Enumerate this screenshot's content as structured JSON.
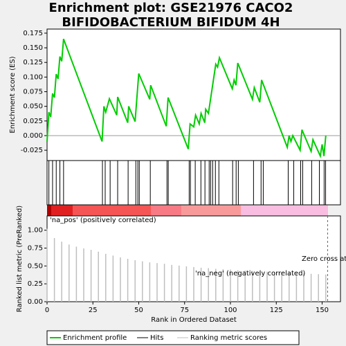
{
  "chart_data": [
    {
      "type": "line",
      "title": [
        "Enrichment plot: GSE21976 CACO2",
        "BIFIDOBACTERIUM BIFIDUM 4H"
      ],
      "ylabel": "Enrichment score (ES)",
      "xlim": [
        0,
        160
      ],
      "ylim": [
        -0.0426,
        0.182
      ],
      "yticks": [
        {
          "value": -0.025,
          "label": "-0.025"
        },
        {
          "value": 0,
          "label": "0.000"
        },
        {
          "value": 0.025,
          "label": "0.025"
        },
        {
          "value": 0.05,
          "label": "0.050"
        },
        {
          "value": 0.075,
          "label": "0.075"
        },
        {
          "value": 0.1,
          "label": "0.100"
        },
        {
          "value": 0.125,
          "label": "0.125"
        },
        {
          "value": 0.15,
          "label": "0.150"
        },
        {
          "value": 0.175,
          "label": "0.175"
        }
      ],
      "zero_line": true,
      "x": [
        0,
        1,
        2,
        3,
        4,
        5,
        6,
        7,
        8,
        9,
        30,
        31,
        32,
        34,
        38,
        38.5,
        44,
        44.5,
        48,
        50,
        56,
        56.5,
        65,
        66,
        77,
        78,
        80,
        81,
        83,
        84,
        86,
        86.5,
        88,
        90,
        92,
        93,
        94,
        101,
        102,
        103,
        104,
        112,
        113,
        116,
        117,
        131,
        132,
        133,
        134,
        138,
        139,
        144,
        145,
        149,
        150,
        151,
        152
      ],
      "series": [
        {
          "name": "Enrichment profile",
          "color": "#00cc00",
          "values": [
            -0.01,
            0.04,
            0.032,
            0.072,
            0.065,
            0.105,
            0.097,
            0.135,
            0.127,
            0.165,
            -0.01,
            0.05,
            0.04,
            0.063,
            0.035,
            0.066,
            0.022,
            0.05,
            0.024,
            0.106,
            0.062,
            0.086,
            0.016,
            0.065,
            -0.023,
            0.02,
            0.015,
            0.035,
            0.02,
            0.038,
            0.022,
            0.045,
            0.038,
            0.08,
            0.122,
            0.117,
            0.133,
            0.08,
            0.095,
            0.086,
            0.124,
            0.062,
            0.082,
            0.057,
            0.095,
            -0.02,
            0,
            -0.01,
            0,
            -0.025,
            0.01,
            -0.027,
            -0.007,
            -0.035,
            -0.015,
            -0.035,
            0
          ]
        }
      ]
    },
    {
      "type": "rug",
      "xlim": [
        0,
        160
      ],
      "series": [
        {
          "name": "Hits",
          "color": "#000000",
          "x": [
            1,
            3,
            5,
            7,
            9,
            30.2,
            31.7,
            34.4,
            38.5,
            44.2,
            48.4,
            49.5,
            50.3,
            56.3,
            65.4,
            66.1,
            77.5,
            78.2,
            80.8,
            83.9,
            86.1,
            88.4,
            89.2,
            90.3,
            91.8,
            93.7,
            101.2,
            103.1,
            104.3,
            112.6,
            116.7,
            117.9,
            131.5,
            134.5,
            138.3,
            139.4,
            144.3,
            148.5,
            151.1,
            151.9
          ]
        }
      ]
    },
    {
      "type": "bar",
      "xlabel": "Rank in Ordered Dataset",
      "ylabel": "Ranked list metric (PreRanked)",
      "xlim": [
        0,
        160
      ],
      "xticks": [
        0,
        25,
        50,
        75,
        100,
        125,
        150
      ],
      "ylim": [
        0,
        1.2
      ],
      "yticks": [
        {
          "value": 0,
          "label": "0.00"
        },
        {
          "value": 0.25,
          "label": "0.25"
        },
        {
          "value": 0.5,
          "label": "0.50"
        },
        {
          "value": 0.75,
          "label": "0.75"
        },
        {
          "value": 1,
          "label": "1.00"
        }
      ],
      "x": [
        0,
        4,
        8,
        12,
        16,
        20,
        24,
        28,
        32,
        36,
        40,
        44,
        48,
        52,
        56,
        60,
        64,
        68,
        72,
        76,
        80,
        84,
        88,
        92,
        96,
        100,
        104,
        108,
        112,
        116,
        120,
        124,
        128,
        132,
        136,
        140,
        144,
        148,
        152
      ],
      "series": [
        {
          "name": "Ranking metric scores",
          "color": "#bebebe",
          "values": [
            1.02,
            0.89,
            0.84,
            0.8,
            0.77,
            0.745,
            0.725,
            0.7,
            0.67,
            0.645,
            0.62,
            0.6,
            0.58,
            0.565,
            0.55,
            0.54,
            0.53,
            0.515,
            0.505,
            0.495,
            0.485,
            0.475,
            0.47,
            0.46,
            0.455,
            0.45,
            0.44,
            0.435,
            0.43,
            0.425,
            0.42,
            0.415,
            0.41,
            0.405,
            0.4,
            0.395,
            0.39,
            0.385,
            0.38
          ]
        }
      ],
      "annotations": [
        {
          "text": "'na_pos' (positively correlated)",
          "color": "#cc0000"
        },
        {
          "text": "'na_neg' (negatively correlated)",
          "color": "#0000cc"
        }
      ],
      "zero_cross": {
        "value": 153,
        "label": "Zero cross at"
      }
    }
  ]
}
